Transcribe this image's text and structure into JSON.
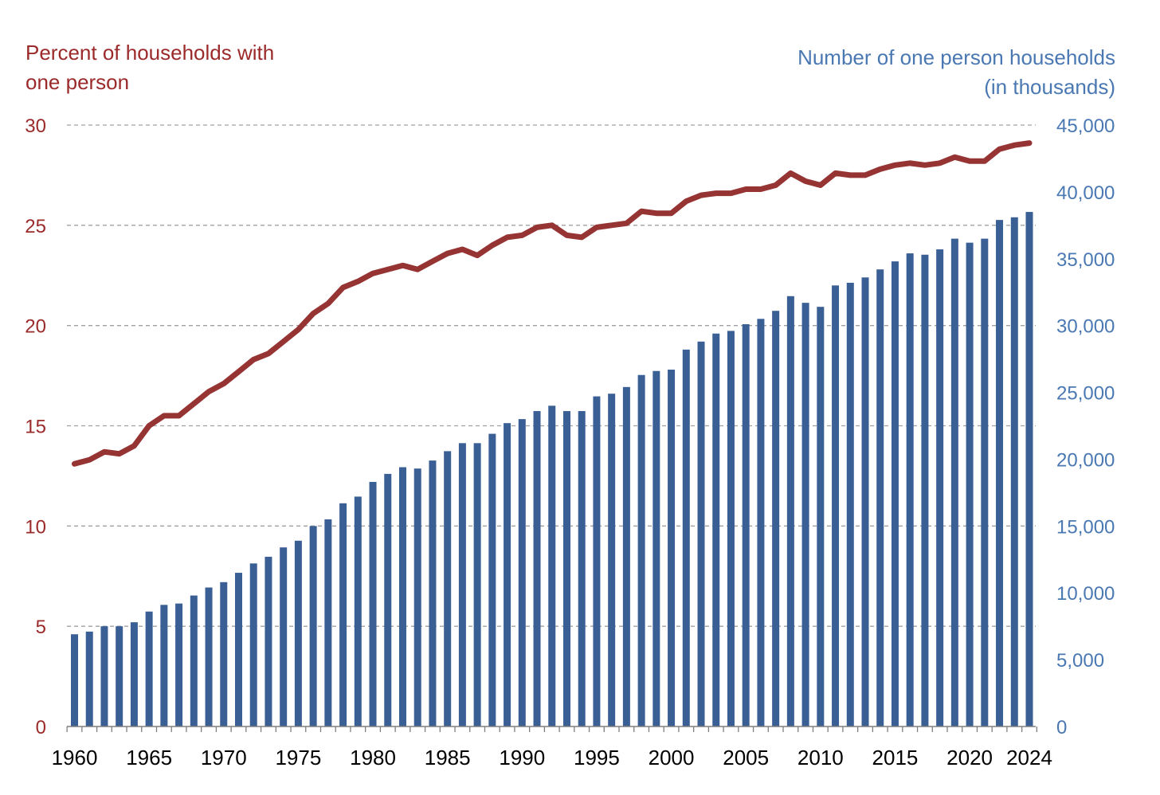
{
  "chart_data": {
    "type": "bar+line",
    "left_axis_title": "Percent of households with one person",
    "right_axis_title": "Number of one person households (in thousands)",
    "left_axis": {
      "min": 0,
      "max": 30,
      "ticks": [
        "0",
        "5",
        "10",
        "15",
        "20",
        "25",
        "30"
      ]
    },
    "right_axis": {
      "min": 0,
      "max": 45000,
      "ticks": [
        "0",
        "5,000",
        "10,000",
        "15,000",
        "20,000",
        "25,000",
        "30,000",
        "35,000",
        "40,000",
        "45,000"
      ]
    },
    "x_tick_labels": [
      "1960",
      "1965",
      "1970",
      "1975",
      "1980",
      "1985",
      "1990",
      "1995",
      "2000",
      "2005",
      "2010",
      "2015",
      "2020",
      "2024"
    ],
    "grid": "dashed horizontal at left-axis ticks",
    "x": [
      1960,
      1961,
      1962,
      1963,
      1964,
      1965,
      1966,
      1967,
      1968,
      1969,
      1970,
      1971,
      1972,
      1973,
      1974,
      1975,
      1976,
      1977,
      1978,
      1979,
      1980,
      1981,
      1982,
      1983,
      1984,
      1985,
      1986,
      1987,
      1988,
      1989,
      1990,
      1991,
      1992,
      1993,
      1994,
      1995,
      1996,
      1997,
      1998,
      1999,
      2000,
      2001,
      2002,
      2003,
      2004,
      2005,
      2006,
      2007,
      2008,
      2009,
      2010,
      2011,
      2012,
      2013,
      2014,
      2015,
      2016,
      2017,
      2018,
      2019,
      2020,
      2021,
      2022,
      2023,
      2024
    ],
    "series": [
      {
        "axis": "right",
        "type": "bar",
        "color": "#3a5f95",
        "values": [
          6900,
          7100,
          7500,
          7500,
          7800,
          8600,
          9100,
          9200,
          9800,
          10400,
          10800,
          11500,
          12200,
          12700,
          13400,
          13900,
          15000,
          15500,
          16700,
          17200,
          18300,
          18900,
          19400,
          19300,
          19900,
          20600,
          21200,
          21200,
          21900,
          22700,
          23000,
          23600,
          24000,
          23600,
          23600,
          24700,
          24900,
          25400,
          26300,
          26600,
          26700,
          28200,
          28800,
          29400,
          29600,
          30100,
          30500,
          31100,
          32200,
          31700,
          31400,
          33000,
          33200,
          33600,
          34200,
          34800,
          35400,
          35300,
          35700,
          36500,
          36200,
          36500,
          37900,
          38100,
          38500
        ]
      },
      {
        "axis": "left",
        "type": "line",
        "color": "#963434",
        "values": [
          13.1,
          13.3,
          13.7,
          13.6,
          14.0,
          15.0,
          15.5,
          15.5,
          16.1,
          16.7,
          17.1,
          17.7,
          18.3,
          18.6,
          19.2,
          19.8,
          20.6,
          21.1,
          21.9,
          22.2,
          22.6,
          22.8,
          23.0,
          22.8,
          23.2,
          23.6,
          23.8,
          23.5,
          24.0,
          24.4,
          24.5,
          24.9,
          25.0,
          24.5,
          24.4,
          24.9,
          25.0,
          25.1,
          25.7,
          25.6,
          25.6,
          26.2,
          26.5,
          26.6,
          26.6,
          26.8,
          26.8,
          27.0,
          27.6,
          27.2,
          27.0,
          27.6,
          27.5,
          27.5,
          27.8,
          28.0,
          28.1,
          28.0,
          28.1,
          28.4,
          28.2,
          28.2,
          28.8,
          29.0,
          29.1
        ]
      }
    ]
  },
  "colors": {
    "left_axis": "#9b2a2a",
    "right_axis": "#4a78b2",
    "bars": "#3a5f95",
    "line": "#963434",
    "grid": "#a0a0a0"
  }
}
